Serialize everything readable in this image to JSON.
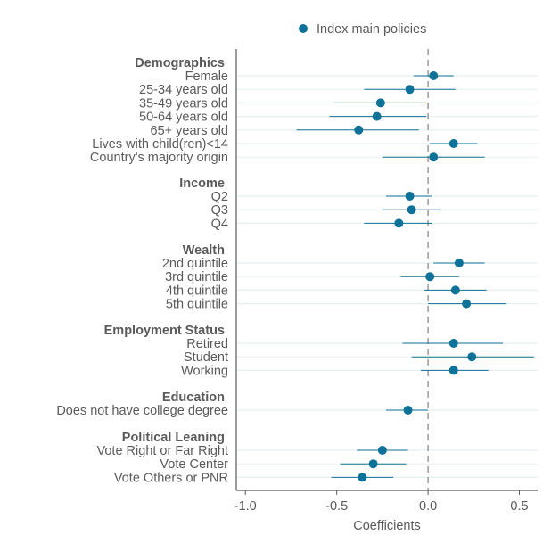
{
  "chart_data": {
    "type": "scatter",
    "subtype": "coefficient-plot",
    "legend": {
      "entries": [
        "Index main policies"
      ],
      "position": "top"
    },
    "xlabel": "Coefficients",
    "xlim": [
      -1.05,
      0.6
    ],
    "xticks": [
      "-1.0",
      "-0.5",
      "0.0",
      "0.5"
    ],
    "xtick_values": [
      -1.0,
      -0.5,
      0.0,
      0.5
    ],
    "reference_line": 0,
    "colors": {
      "point": "#0e7298",
      "axis": "#5a5a5a",
      "grid": "#e6f0f3",
      "refline": "#8a8a8a"
    },
    "groups": [
      {
        "name": "Demographics",
        "items": [
          {
            "label": "Female",
            "estimate": 0.03,
            "ci": [
              -0.08,
              0.14
            ]
          },
          {
            "label": "25-34 years old",
            "estimate": -0.1,
            "ci": [
              -0.35,
              0.15
            ]
          },
          {
            "label": "35-49 years old",
            "estimate": -0.26,
            "ci": [
              -0.51,
              -0.01
            ]
          },
          {
            "label": "50-64 years old",
            "estimate": -0.28,
            "ci": [
              -0.54,
              -0.01
            ]
          },
          {
            "label": "65+ years old",
            "estimate": -0.38,
            "ci": [
              -0.72,
              -0.05
            ]
          },
          {
            "label": "Lives with child(ren)<14",
            "estimate": 0.14,
            "ci": [
              0.01,
              0.27
            ]
          },
          {
            "label": "Country's majority origin",
            "estimate": 0.03,
            "ci": [
              -0.25,
              0.31
            ]
          }
        ]
      },
      {
        "name": "Income",
        "items": [
          {
            "label": "Q2",
            "estimate": -0.1,
            "ci": [
              -0.23,
              0.02
            ]
          },
          {
            "label": "Q3",
            "estimate": -0.09,
            "ci": [
              -0.25,
              0.07
            ]
          },
          {
            "label": "Q4",
            "estimate": -0.16,
            "ci": [
              -0.35,
              0.02
            ]
          }
        ]
      },
      {
        "name": "Wealth",
        "items": [
          {
            "label": "2nd quintile",
            "estimate": 0.17,
            "ci": [
              0.03,
              0.31
            ]
          },
          {
            "label": "3rd quintile",
            "estimate": 0.01,
            "ci": [
              -0.15,
              0.17
            ]
          },
          {
            "label": "4th quintile",
            "estimate": 0.15,
            "ci": [
              -0.02,
              0.32
            ]
          },
          {
            "label": "5th quintile",
            "estimate": 0.21,
            "ci": [
              0.0,
              0.43
            ]
          }
        ]
      },
      {
        "name": "Employment Status",
        "items": [
          {
            "label": "Retired",
            "estimate": 0.14,
            "ci": [
              -0.14,
              0.41
            ]
          },
          {
            "label": "Student",
            "estimate": 0.24,
            "ci": [
              -0.09,
              0.58
            ]
          },
          {
            "label": "Working",
            "estimate": 0.14,
            "ci": [
              -0.04,
              0.33
            ]
          }
        ]
      },
      {
        "name": "Education",
        "items": [
          {
            "label": "Does not have college degree",
            "estimate": -0.11,
            "ci": [
              -0.23,
              0.0
            ]
          }
        ]
      },
      {
        "name": "Political Leaning",
        "items": [
          {
            "label": "Vote Right or Far Right",
            "estimate": -0.25,
            "ci": [
              -0.39,
              -0.11
            ]
          },
          {
            "label": "Vote Center",
            "estimate": -0.3,
            "ci": [
              -0.48,
              -0.12
            ]
          },
          {
            "label": "Vote Others or PNR",
            "estimate": -0.36,
            "ci": [
              -0.53,
              -0.19
            ]
          }
        ]
      }
    ]
  }
}
